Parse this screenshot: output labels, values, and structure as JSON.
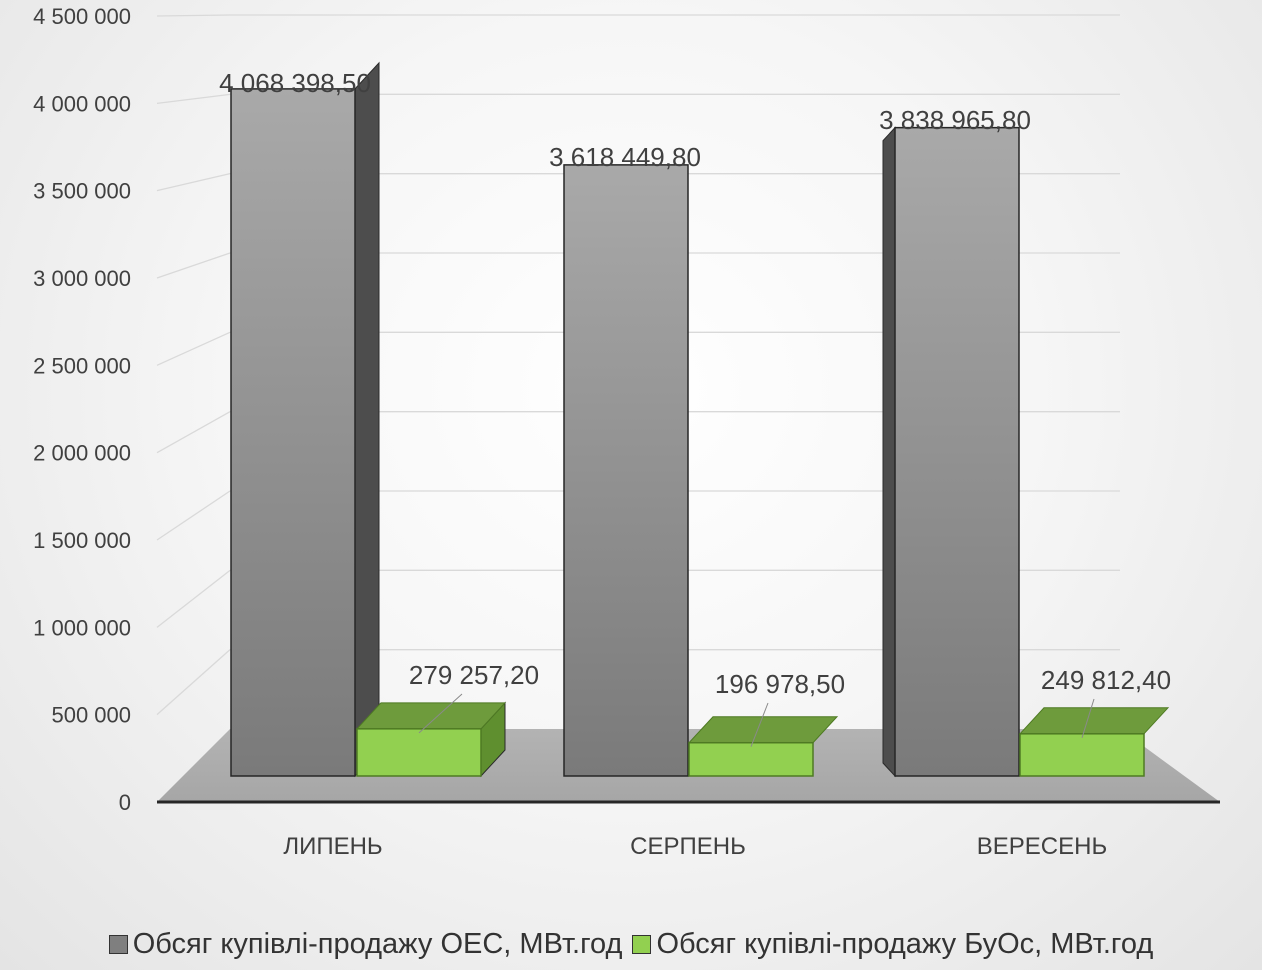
{
  "chart_data": {
    "type": "bar",
    "categories": [
      "ЛИПЕНЬ",
      "СЕРПЕНЬ",
      "ВЕРЕСЕНЬ"
    ],
    "series": [
      {
        "name": "Обсяг купівлі-продажу ОЕС, МВт.год",
        "values": [
          4068398.5,
          3618449.8,
          3838965.8
        ],
        "labels": [
          "4 068 398,50",
          "3 618 449,80",
          "3 838 965,80"
        ],
        "color": "#8c8c8c"
      },
      {
        "name": "Обсяг купівлі-продажу БуОс, МВт.год",
        "values": [
          279257.2,
          196978.5,
          249812.4
        ],
        "labels": [
          "279 257,20",
          "196 978,50",
          "249 812,40"
        ],
        "color": "#92d050"
      }
    ],
    "ylim": [
      0,
      4500000
    ],
    "yticks": [
      0,
      500000,
      1000000,
      1500000,
      2000000,
      2500000,
      3000000,
      3500000,
      4000000,
      4500000
    ],
    "ytick_labels": [
      "0",
      "500 000",
      "1 000 000",
      "1 500 000",
      "2 000 000",
      "2 500 000",
      "3 000 000",
      "3 500 000",
      "4 000 000",
      "4 500 000"
    ],
    "grid": true,
    "legend_position": "bottom",
    "style": "3d-clustered-column"
  }
}
